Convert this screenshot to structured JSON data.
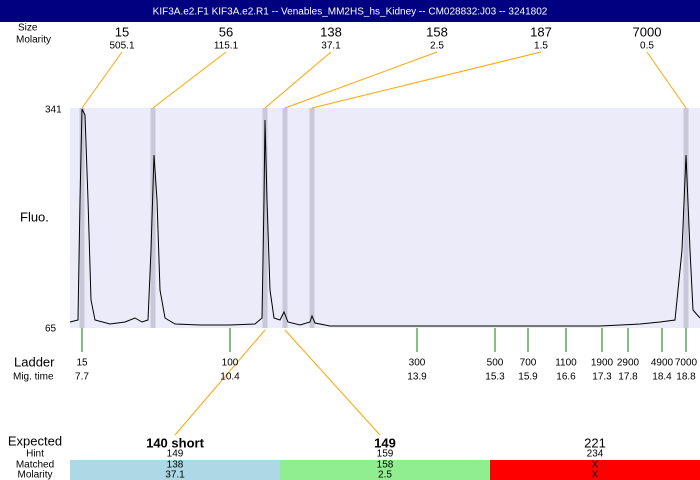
{
  "header": {
    "title": "KIF3A.e2.F1  KIF3A.e2.R1 -- Venables_MM2HS_hs_Kidney -- CM028832:J03 -- 3241802"
  },
  "peaks": {
    "size_label": "Size",
    "molarity_label": "Molarity",
    "items": [
      {
        "size": 15,
        "molarity": 505.1
      },
      {
        "size": 56,
        "molarity": 115.1
      },
      {
        "size": 138,
        "molarity": 37.1
      },
      {
        "size": 158,
        "molarity": 2.5
      },
      {
        "size": 187,
        "molarity": 1.5
      },
      {
        "size": 7000,
        "molarity": 0.5
      }
    ]
  },
  "axis": {
    "top": 341,
    "label": "Fluo.",
    "bottom": 65
  },
  "ladder": {
    "label": "Ladder",
    "time_label": "Mig. time",
    "items": [
      {
        "size": 15,
        "time": 7.7
      },
      {
        "size": 100,
        "time": 10.4
      },
      {
        "size": 300,
        "time": 13.9
      },
      {
        "size": 500,
        "time": 15.3
      },
      {
        "size": 700,
        "time": 15.9
      },
      {
        "size": 1100,
        "time": 16.6
      },
      {
        "size": 1900,
        "time": 17.3
      },
      {
        "size": 2900,
        "time": 17.8
      },
      {
        "size": 4900,
        "time": 18.4
      },
      {
        "size": 7000,
        "time": 18.8
      }
    ]
  },
  "expected": {
    "label": "Expected",
    "hint_label": "Hint",
    "matched_label": "Matched",
    "molarity_label": "Molarity",
    "columns": [
      {
        "expected": "140 short",
        "hint": 149,
        "matched": 138,
        "molarity": 37.1
      },
      {
        "expected": 149,
        "hint": 159,
        "matched": 158,
        "molarity": 2.5
      },
      {
        "expected": 221,
        "hint": 234,
        "matched": "X",
        "molarity": "X"
      }
    ]
  }
}
